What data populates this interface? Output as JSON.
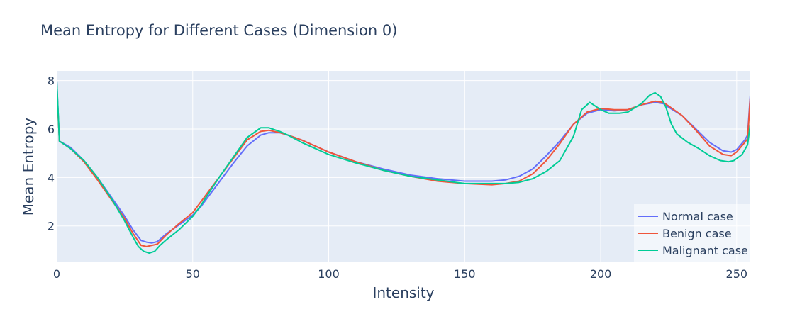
{
  "chart_data": {
    "type": "line",
    "title": "Mean Entropy for Different Cases (Dimension 0)",
    "xlabel": "Intensity",
    "ylabel": "Mean Entropy",
    "xlim": [
      0,
      255
    ],
    "ylim": [
      0.5,
      8.4
    ],
    "xticks": [
      0,
      50,
      100,
      150,
      200,
      250
    ],
    "yticks": [
      2,
      4,
      6,
      8
    ],
    "grid": true,
    "legend_position": "bottom-right",
    "colors": {
      "plot_bg": "#e5ecf6",
      "grid": "#ffffff",
      "text": "#2a3f5f"
    },
    "series": [
      {
        "name": "Normal case",
        "color": "#636efa",
        "points": [
          [
            0,
            8.0
          ],
          [
            1,
            5.5
          ],
          [
            5,
            5.25
          ],
          [
            10,
            4.7
          ],
          [
            15,
            4.0
          ],
          [
            20,
            3.2
          ],
          [
            25,
            2.4
          ],
          [
            28,
            1.85
          ],
          [
            31,
            1.4
          ],
          [
            33,
            1.33
          ],
          [
            35,
            1.3
          ],
          [
            37,
            1.35
          ],
          [
            40,
            1.65
          ],
          [
            45,
            2.05
          ],
          [
            50,
            2.45
          ],
          [
            53,
            2.8
          ],
          [
            55,
            3.1
          ],
          [
            60,
            3.85
          ],
          [
            65,
            4.6
          ],
          [
            70,
            5.3
          ],
          [
            75,
            5.75
          ],
          [
            78,
            5.85
          ],
          [
            82,
            5.85
          ],
          [
            85,
            5.75
          ],
          [
            90,
            5.55
          ],
          [
            95,
            5.3
          ],
          [
            100,
            5.05
          ],
          [
            110,
            4.65
          ],
          [
            120,
            4.35
          ],
          [
            130,
            4.1
          ],
          [
            140,
            3.95
          ],
          [
            150,
            3.85
          ],
          [
            160,
            3.85
          ],
          [
            165,
            3.9
          ],
          [
            170,
            4.05
          ],
          [
            175,
            4.35
          ],
          [
            180,
            4.9
          ],
          [
            185,
            5.5
          ],
          [
            190,
            6.2
          ],
          [
            195,
            6.65
          ],
          [
            200,
            6.8
          ],
          [
            205,
            6.75
          ],
          [
            210,
            6.8
          ],
          [
            215,
            7.0
          ],
          [
            220,
            7.1
          ],
          [
            223,
            7.05
          ],
          [
            225,
            6.9
          ],
          [
            230,
            6.55
          ],
          [
            235,
            6.0
          ],
          [
            240,
            5.45
          ],
          [
            245,
            5.1
          ],
          [
            248,
            5.05
          ],
          [
            250,
            5.15
          ],
          [
            253,
            5.55
          ],
          [
            254,
            5.75
          ],
          [
            255,
            7.4
          ]
        ]
      },
      {
        "name": "Benign case",
        "color": "#ef553b",
        "points": [
          [
            0,
            7.8
          ],
          [
            1,
            5.5
          ],
          [
            5,
            5.2
          ],
          [
            10,
            4.65
          ],
          [
            15,
            3.9
          ],
          [
            20,
            3.1
          ],
          [
            25,
            2.3
          ],
          [
            28,
            1.7
          ],
          [
            31,
            1.2
          ],
          [
            33,
            1.15
          ],
          [
            35,
            1.2
          ],
          [
            37,
            1.25
          ],
          [
            40,
            1.6
          ],
          [
            45,
            2.1
          ],
          [
            50,
            2.55
          ],
          [
            53,
            3.0
          ],
          [
            55,
            3.3
          ],
          [
            60,
            4.05
          ],
          [
            65,
            4.8
          ],
          [
            70,
            5.55
          ],
          [
            75,
            5.9
          ],
          [
            78,
            5.95
          ],
          [
            82,
            5.85
          ],
          [
            85,
            5.75
          ],
          [
            90,
            5.55
          ],
          [
            95,
            5.3
          ],
          [
            100,
            5.05
          ],
          [
            110,
            4.65
          ],
          [
            120,
            4.3
          ],
          [
            130,
            4.05
          ],
          [
            140,
            3.85
          ],
          [
            150,
            3.75
          ],
          [
            160,
            3.7
          ],
          [
            165,
            3.75
          ],
          [
            170,
            3.85
          ],
          [
            175,
            4.15
          ],
          [
            180,
            4.7
          ],
          [
            185,
            5.4
          ],
          [
            190,
            6.2
          ],
          [
            195,
            6.7
          ],
          [
            200,
            6.85
          ],
          [
            205,
            6.8
          ],
          [
            210,
            6.8
          ],
          [
            215,
            7.0
          ],
          [
            220,
            7.15
          ],
          [
            223,
            7.1
          ],
          [
            225,
            6.95
          ],
          [
            230,
            6.55
          ],
          [
            235,
            5.95
          ],
          [
            240,
            5.3
          ],
          [
            245,
            4.95
          ],
          [
            248,
            4.9
          ],
          [
            250,
            5.05
          ],
          [
            253,
            5.45
          ],
          [
            254,
            5.6
          ],
          [
            255,
            7.3
          ]
        ]
      },
      {
        "name": "Malignant case",
        "color": "#00cc96",
        "points": [
          [
            0,
            8.0
          ],
          [
            1,
            5.5
          ],
          [
            5,
            5.2
          ],
          [
            10,
            4.7
          ],
          [
            15,
            4.0
          ],
          [
            20,
            3.15
          ],
          [
            25,
            2.2
          ],
          [
            28,
            1.55
          ],
          [
            30,
            1.15
          ],
          [
            32,
            0.95
          ],
          [
            34,
            0.88
          ],
          [
            36,
            0.95
          ],
          [
            38,
            1.2
          ],
          [
            40,
            1.4
          ],
          [
            45,
            1.85
          ],
          [
            50,
            2.4
          ],
          [
            53,
            2.85
          ],
          [
            55,
            3.2
          ],
          [
            60,
            4.05
          ],
          [
            65,
            4.85
          ],
          [
            70,
            5.65
          ],
          [
            75,
            6.05
          ],
          [
            78,
            6.05
          ],
          [
            82,
            5.9
          ],
          [
            85,
            5.75
          ],
          [
            90,
            5.45
          ],
          [
            95,
            5.2
          ],
          [
            100,
            4.95
          ],
          [
            110,
            4.6
          ],
          [
            120,
            4.3
          ],
          [
            130,
            4.05
          ],
          [
            140,
            3.9
          ],
          [
            150,
            3.75
          ],
          [
            160,
            3.75
          ],
          [
            165,
            3.75
          ],
          [
            170,
            3.8
          ],
          [
            175,
            3.95
          ],
          [
            180,
            4.25
          ],
          [
            185,
            4.7
          ],
          [
            190,
            5.7
          ],
          [
            193,
            6.8
          ],
          [
            196,
            7.1
          ],
          [
            198,
            6.95
          ],
          [
            200,
            6.8
          ],
          [
            203,
            6.65
          ],
          [
            207,
            6.65
          ],
          [
            210,
            6.7
          ],
          [
            215,
            7.05
          ],
          [
            218,
            7.4
          ],
          [
            220,
            7.5
          ],
          [
            222,
            7.35
          ],
          [
            224,
            6.9
          ],
          [
            226,
            6.2
          ],
          [
            228,
            5.8
          ],
          [
            232,
            5.45
          ],
          [
            236,
            5.2
          ],
          [
            240,
            4.9
          ],
          [
            244,
            4.7
          ],
          [
            247,
            4.65
          ],
          [
            249,
            4.7
          ],
          [
            252,
            4.95
          ],
          [
            254,
            5.35
          ],
          [
            255,
            6.2
          ]
        ]
      }
    ]
  }
}
